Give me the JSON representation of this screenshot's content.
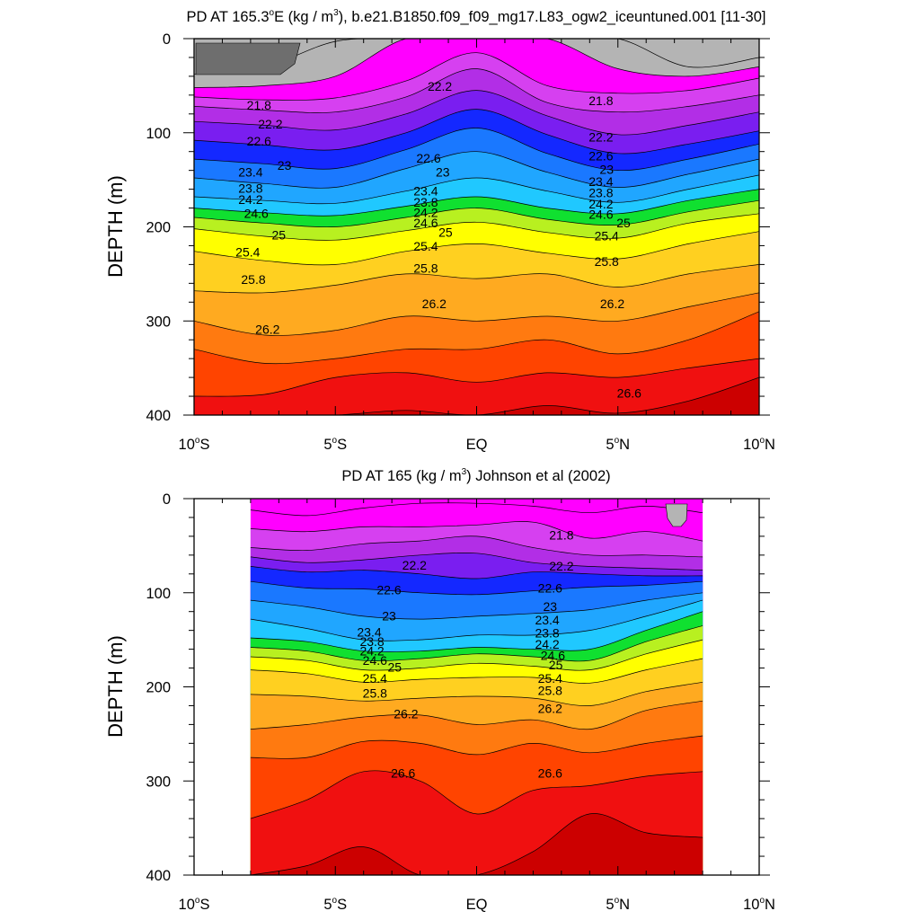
{
  "panels": [
    {
      "title_prefix": "PD AT 165.3",
      "title_degree": "o",
      "title_after_degree": "E (kg / m",
      "title_sup": "3",
      "title_suffix": "), b.e21.B1850.f09_f09_mg17.L83_ogw2_iceuntuned.001 [11-30]",
      "ylabel": "DEPTH (m)"
    },
    {
      "title_prefix": "PD AT 165 (kg / m",
      "title_sup": "3",
      "title_suffix": ") Johnson et al (2002)",
      "ylabel": "DEPTH (m)"
    }
  ],
  "x_ticks": [
    {
      "value": -10,
      "num": "10",
      "deg": "o",
      "hem": "S"
    },
    {
      "value": -5,
      "num": "5",
      "deg": "o",
      "hem": "S"
    },
    {
      "value": 0,
      "num": "EQ",
      "deg": "",
      "hem": ""
    },
    {
      "value": 5,
      "num": "5",
      "deg": "o",
      "hem": "N"
    },
    {
      "value": 10,
      "num": "10",
      "deg": "o",
      "hem": "N"
    }
  ],
  "y_ticks": [
    0,
    100,
    200,
    300,
    400
  ],
  "colors": {
    "gray_dark": "#6e6e6e",
    "gray": "#b4b4b4",
    "magenta": "#ff00ff",
    "violet": "#b22ee6",
    "purple": "#7a1ef0",
    "blue": "#1428ff",
    "cyan": "#00e8ff",
    "green": "#10e030",
    "yellow": "#ffff00",
    "orange": "#ff9a10",
    "red_orange": "#ff4400",
    "red": "#f01010",
    "dark_red": "#cc0000"
  },
  "chart_data": [
    {
      "type": "contour",
      "title": "PD AT 165.3°E (kg / m3), b.e21.B1850.f09_f09_mg17.L83_ogw2_iceuntuned.001 [11-30]",
      "xlabel": "",
      "ylabel": "DEPTH (m)",
      "xlim": [
        -10,
        10
      ],
      "ylim": [
        400,
        0
      ],
      "data_xrange": [
        -10,
        10
      ],
      "x_nodes": [
        -10,
        -7.5,
        -5,
        -2.5,
        0,
        2.5,
        5,
        7.5,
        10
      ],
      "levels": [
        {
          "value": 20.6,
          "depths": [
            38,
            30,
            3,
            0,
            0,
            0,
            0,
            30,
            20
          ],
          "color": "#b4b4b4"
        },
        {
          "value": 21.0,
          "depths": [
            52,
            50,
            40,
            0,
            0,
            0,
            32,
            40,
            30
          ],
          "color": "#ff00ff"
        },
        {
          "value": 21.4,
          "depths": [
            62,
            65,
            63,
            45,
            15,
            50,
            58,
            55,
            42
          ],
          "color": "#d640f0"
        },
        {
          "value": 21.8,
          "depths": [
            72,
            76,
            78,
            62,
            32,
            68,
            78,
            72,
            60
          ],
          "color": "#b22ee6"
        },
        {
          "value": 22.2,
          "depths": [
            88,
            92,
            97,
            80,
            55,
            82,
            102,
            92,
            78
          ],
          "color": "#7a1ef0"
        },
        {
          "value": 22.6,
          "depths": [
            108,
            113,
            118,
            100,
            75,
            102,
            122,
            112,
            98
          ],
          "color": "#1428ff"
        },
        {
          "value": 23.0,
          "depths": [
            128,
            133,
            138,
            118,
            95,
            122,
            140,
            128,
            112
          ],
          "color": "#1a78ff"
        },
        {
          "value": 23.4,
          "depths": [
            148,
            154,
            158,
            138,
            120,
            142,
            158,
            144,
            128
          ],
          "color": "#20a6ff"
        },
        {
          "value": 23.8,
          "depths": [
            168,
            172,
            175,
            162,
            148,
            162,
            174,
            160,
            145
          ],
          "color": "#20c8ff"
        },
        {
          "value": 24.2,
          "depths": [
            180,
            185,
            188,
            178,
            168,
            180,
            186,
            172,
            160
          ],
          "color": "#10e030"
        },
        {
          "value": 24.6,
          "depths": [
            190,
            196,
            200,
            190,
            180,
            192,
            198,
            184,
            172
          ],
          "color": "#b8f020"
        },
        {
          "value": 25.0,
          "depths": [
            202,
            210,
            214,
            204,
            195,
            206,
            212,
            196,
            186
          ],
          "color": "#ffff00"
        },
        {
          "value": 25.4,
          "depths": [
            226,
            236,
            240,
            226,
            218,
            228,
            234,
            218,
            205
          ],
          "color": "#ffd020"
        },
        {
          "value": 25.8,
          "depths": [
            268,
            270,
            262,
            250,
            255,
            250,
            264,
            250,
            240
          ],
          "color": "#ffaa20"
        },
        {
          "value": 26.2,
          "depths": [
            300,
            315,
            310,
            295,
            300,
            295,
            300,
            285,
            270
          ],
          "color": "#ff7a10"
        },
        {
          "value": 26.6,
          "depths": [
            330,
            345,
            340,
            330,
            330,
            320,
            335,
            320,
            290
          ],
          "color": "#ff4400"
        },
        {
          "value": 27.0,
          "depths": [
            380,
            378,
            360,
            355,
            365,
            355,
            360,
            350,
            340
          ],
          "color": "#f01010"
        },
        {
          "value": 27.4,
          "depths": [
            400,
            400,
            400,
            395,
            400,
            390,
            398,
            385,
            360
          ],
          "color": "#cc0000"
        }
      ],
      "contour_labels": [
        {
          "text": "21.8",
          "lat": -7.7,
          "depth": 72
        },
        {
          "text": "22.2",
          "lat": -7.3,
          "depth": 92
        },
        {
          "text": "22.6",
          "lat": -7.7,
          "depth": 110
        },
        {
          "text": "23.4",
          "lat": -8.0,
          "depth": 143
        },
        {
          "text": "23",
          "lat": -6.8,
          "depth": 136
        },
        {
          "text": "23.8",
          "lat": -8.0,
          "depth": 160
        },
        {
          "text": "24.2",
          "lat": -8.0,
          "depth": 172
        },
        {
          "text": "24.6",
          "lat": -7.8,
          "depth": 187
        },
        {
          "text": "25",
          "lat": -7.0,
          "depth": 210
        },
        {
          "text": "25.4",
          "lat": -8.1,
          "depth": 228
        },
        {
          "text": "25.8",
          "lat": -7.9,
          "depth": 257
        },
        {
          "text": "26.2",
          "lat": -7.4,
          "depth": 310
        },
        {
          "text": "22.2",
          "lat": -1.3,
          "depth": 52
        },
        {
          "text": "22.6",
          "lat": -1.7,
          "depth": 128
        },
        {
          "text": "23",
          "lat": -1.2,
          "depth": 143
        },
        {
          "text": "23.4",
          "lat": -1.8,
          "depth": 163
        },
        {
          "text": "23.8",
          "lat": -1.8,
          "depth": 175
        },
        {
          "text": "24.2",
          "lat": -1.8,
          "depth": 186
        },
        {
          "text": "24.6",
          "lat": -1.8,
          "depth": 197
        },
        {
          "text": "25",
          "lat": -1.1,
          "depth": 207
        },
        {
          "text": "25.4",
          "lat": -1.8,
          "depth": 222
        },
        {
          "text": "25.8",
          "lat": -1.8,
          "depth": 245
        },
        {
          "text": "26.2",
          "lat": -1.5,
          "depth": 283
        },
        {
          "text": "21.8",
          "lat": 4.4,
          "depth": 67
        },
        {
          "text": "22.2",
          "lat": 4.4,
          "depth": 106
        },
        {
          "text": "22.6",
          "lat": 4.4,
          "depth": 126
        },
        {
          "text": "23",
          "lat": 4.6,
          "depth": 140
        },
        {
          "text": "23.4",
          "lat": 4.4,
          "depth": 153
        },
        {
          "text": "23.8",
          "lat": 4.4,
          "depth": 165
        },
        {
          "text": "24.2",
          "lat": 4.4,
          "depth": 177
        },
        {
          "text": "24.6",
          "lat": 4.4,
          "depth": 188
        },
        {
          "text": "25",
          "lat": 5.2,
          "depth": 197
        },
        {
          "text": "25.4",
          "lat": 4.6,
          "depth": 211
        },
        {
          "text": "25.8",
          "lat": 4.6,
          "depth": 238
        },
        {
          "text": "26.2",
          "lat": 4.8,
          "depth": 283
        },
        {
          "text": "26.6",
          "lat": 5.4,
          "depth": 378
        }
      ]
    },
    {
      "type": "contour",
      "title": "PD AT 165 (kg / m3) Johnson et al (2002)",
      "xlabel": "",
      "ylabel": "DEPTH (m)",
      "xlim": [
        -10,
        10
      ],
      "ylim": [
        400,
        0
      ],
      "data_xrange": [
        -8,
        8
      ],
      "x_nodes": [
        -8,
        -6,
        -4,
        -2,
        0,
        2,
        4,
        6,
        8
      ],
      "levels": [
        {
          "value": 21.0,
          "depths": [
            12,
            18,
            10,
            5,
            5,
            8,
            15,
            8,
            15
          ],
          "color": "#ff00ff"
        },
        {
          "value": 21.4,
          "depths": [
            32,
            35,
            30,
            30,
            28,
            25,
            42,
            35,
            45
          ],
          "color": "#d640f0"
        },
        {
          "value": 21.8,
          "depths": [
            52,
            55,
            48,
            45,
            40,
            52,
            60,
            60,
            62
          ],
          "color": "#b22ee6"
        },
        {
          "value": 22.2,
          "depths": [
            62,
            68,
            65,
            60,
            58,
            68,
            72,
            74,
            76
          ],
          "color": "#7a1ef0"
        },
        {
          "value": 22.6,
          "depths": [
            72,
            78,
            76,
            80,
            85,
            78,
            80,
            82,
            82
          ],
          "color": "#1428ff"
        },
        {
          "value": 23.0,
          "depths": [
            88,
            95,
            96,
            100,
            102,
            98,
            94,
            92,
            88
          ],
          "color": "#1a78ff"
        },
        {
          "value": 23.4,
          "depths": [
            108,
            115,
            125,
            128,
            125,
            122,
            118,
            108,
            100
          ],
          "color": "#20a6ff"
        },
        {
          "value": 23.8,
          "depths": [
            128,
            138,
            150,
            150,
            145,
            145,
            140,
            125,
            108
          ],
          "color": "#20c8ff"
        },
        {
          "value": 24.2,
          "depths": [
            148,
            152,
            162,
            162,
            158,
            160,
            160,
            140,
            120
          ],
          "color": "#10e030"
        },
        {
          "value": 24.6,
          "depths": [
            158,
            162,
            172,
            170,
            165,
            168,
            172,
            152,
            135
          ],
          "color": "#b8f020"
        },
        {
          "value": 25.0,
          "depths": [
            168,
            172,
            182,
            180,
            175,
            178,
            182,
            165,
            150
          ],
          "color": "#ffff00"
        },
        {
          "value": 25.4,
          "depths": [
            182,
            186,
            195,
            192,
            190,
            190,
            196,
            182,
            170
          ],
          "color": "#ffd020"
        },
        {
          "value": 25.8,
          "depths": [
            208,
            210,
            215,
            212,
            210,
            212,
            220,
            205,
            195
          ],
          "color": "#ffaa20"
        },
        {
          "value": 26.2,
          "depths": [
            245,
            240,
            232,
            230,
            240,
            235,
            245,
            225,
            215
          ],
          "color": "#ff7a10"
        },
        {
          "value": 26.6,
          "depths": [
            275,
            275,
            258,
            260,
            272,
            260,
            270,
            260,
            252
          ],
          "color": "#ff4400"
        },
        {
          "value": 27.0,
          "depths": [
            340,
            320,
            290,
            300,
            335,
            310,
            305,
            295,
            290
          ],
          "color": "#f01010"
        },
        {
          "value": 27.4,
          "depths": [
            400,
            390,
            370,
            400,
            400,
            375,
            335,
            355,
            360
          ],
          "color": "#cc0000"
        }
      ],
      "contour_labels": [
        {
          "text": "21.8",
          "lat": 3.0,
          "depth": 40
        },
        {
          "text": "22.2",
          "lat": -2.2,
          "depth": 72
        },
        {
          "text": "22.2",
          "lat": 3.0,
          "depth": 73
        },
        {
          "text": "22.6",
          "lat": -3.1,
          "depth": 98
        },
        {
          "text": "22.6",
          "lat": 2.6,
          "depth": 96
        },
        {
          "text": "23",
          "lat": -3.1,
          "depth": 126
        },
        {
          "text": "23",
          "lat": 2.6,
          "depth": 116
        },
        {
          "text": "23.4",
          "lat": -3.8,
          "depth": 143
        },
        {
          "text": "23.4",
          "lat": 2.5,
          "depth": 130
        },
        {
          "text": "23.8",
          "lat": -3.7,
          "depth": 153
        },
        {
          "text": "23.8",
          "lat": 2.5,
          "depth": 144
        },
        {
          "text": "24.2",
          "lat": -3.7,
          "depth": 163
        },
        {
          "text": "24.2",
          "lat": 2.5,
          "depth": 156
        },
        {
          "text": "24.6",
          "lat": -3.6,
          "depth": 173
        },
        {
          "text": "24.6",
          "lat": 2.7,
          "depth": 168
        },
        {
          "text": "25",
          "lat": -2.9,
          "depth": 180
        },
        {
          "text": "25",
          "lat": 2.8,
          "depth": 178
        },
        {
          "text": "25.4",
          "lat": -3.6,
          "depth": 192
        },
        {
          "text": "25.4",
          "lat": 2.6,
          "depth": 192
        },
        {
          "text": "25.8",
          "lat": -3.6,
          "depth": 208
        },
        {
          "text": "25.8",
          "lat": 2.6,
          "depth": 205
        },
        {
          "text": "26.2",
          "lat": -2.5,
          "depth": 230
        },
        {
          "text": "26.2",
          "lat": 2.6,
          "depth": 224
        },
        {
          "text": "26.6",
          "lat": -2.6,
          "depth": 293
        },
        {
          "text": "26.6",
          "lat": 2.6,
          "depth": 293
        }
      ]
    }
  ]
}
